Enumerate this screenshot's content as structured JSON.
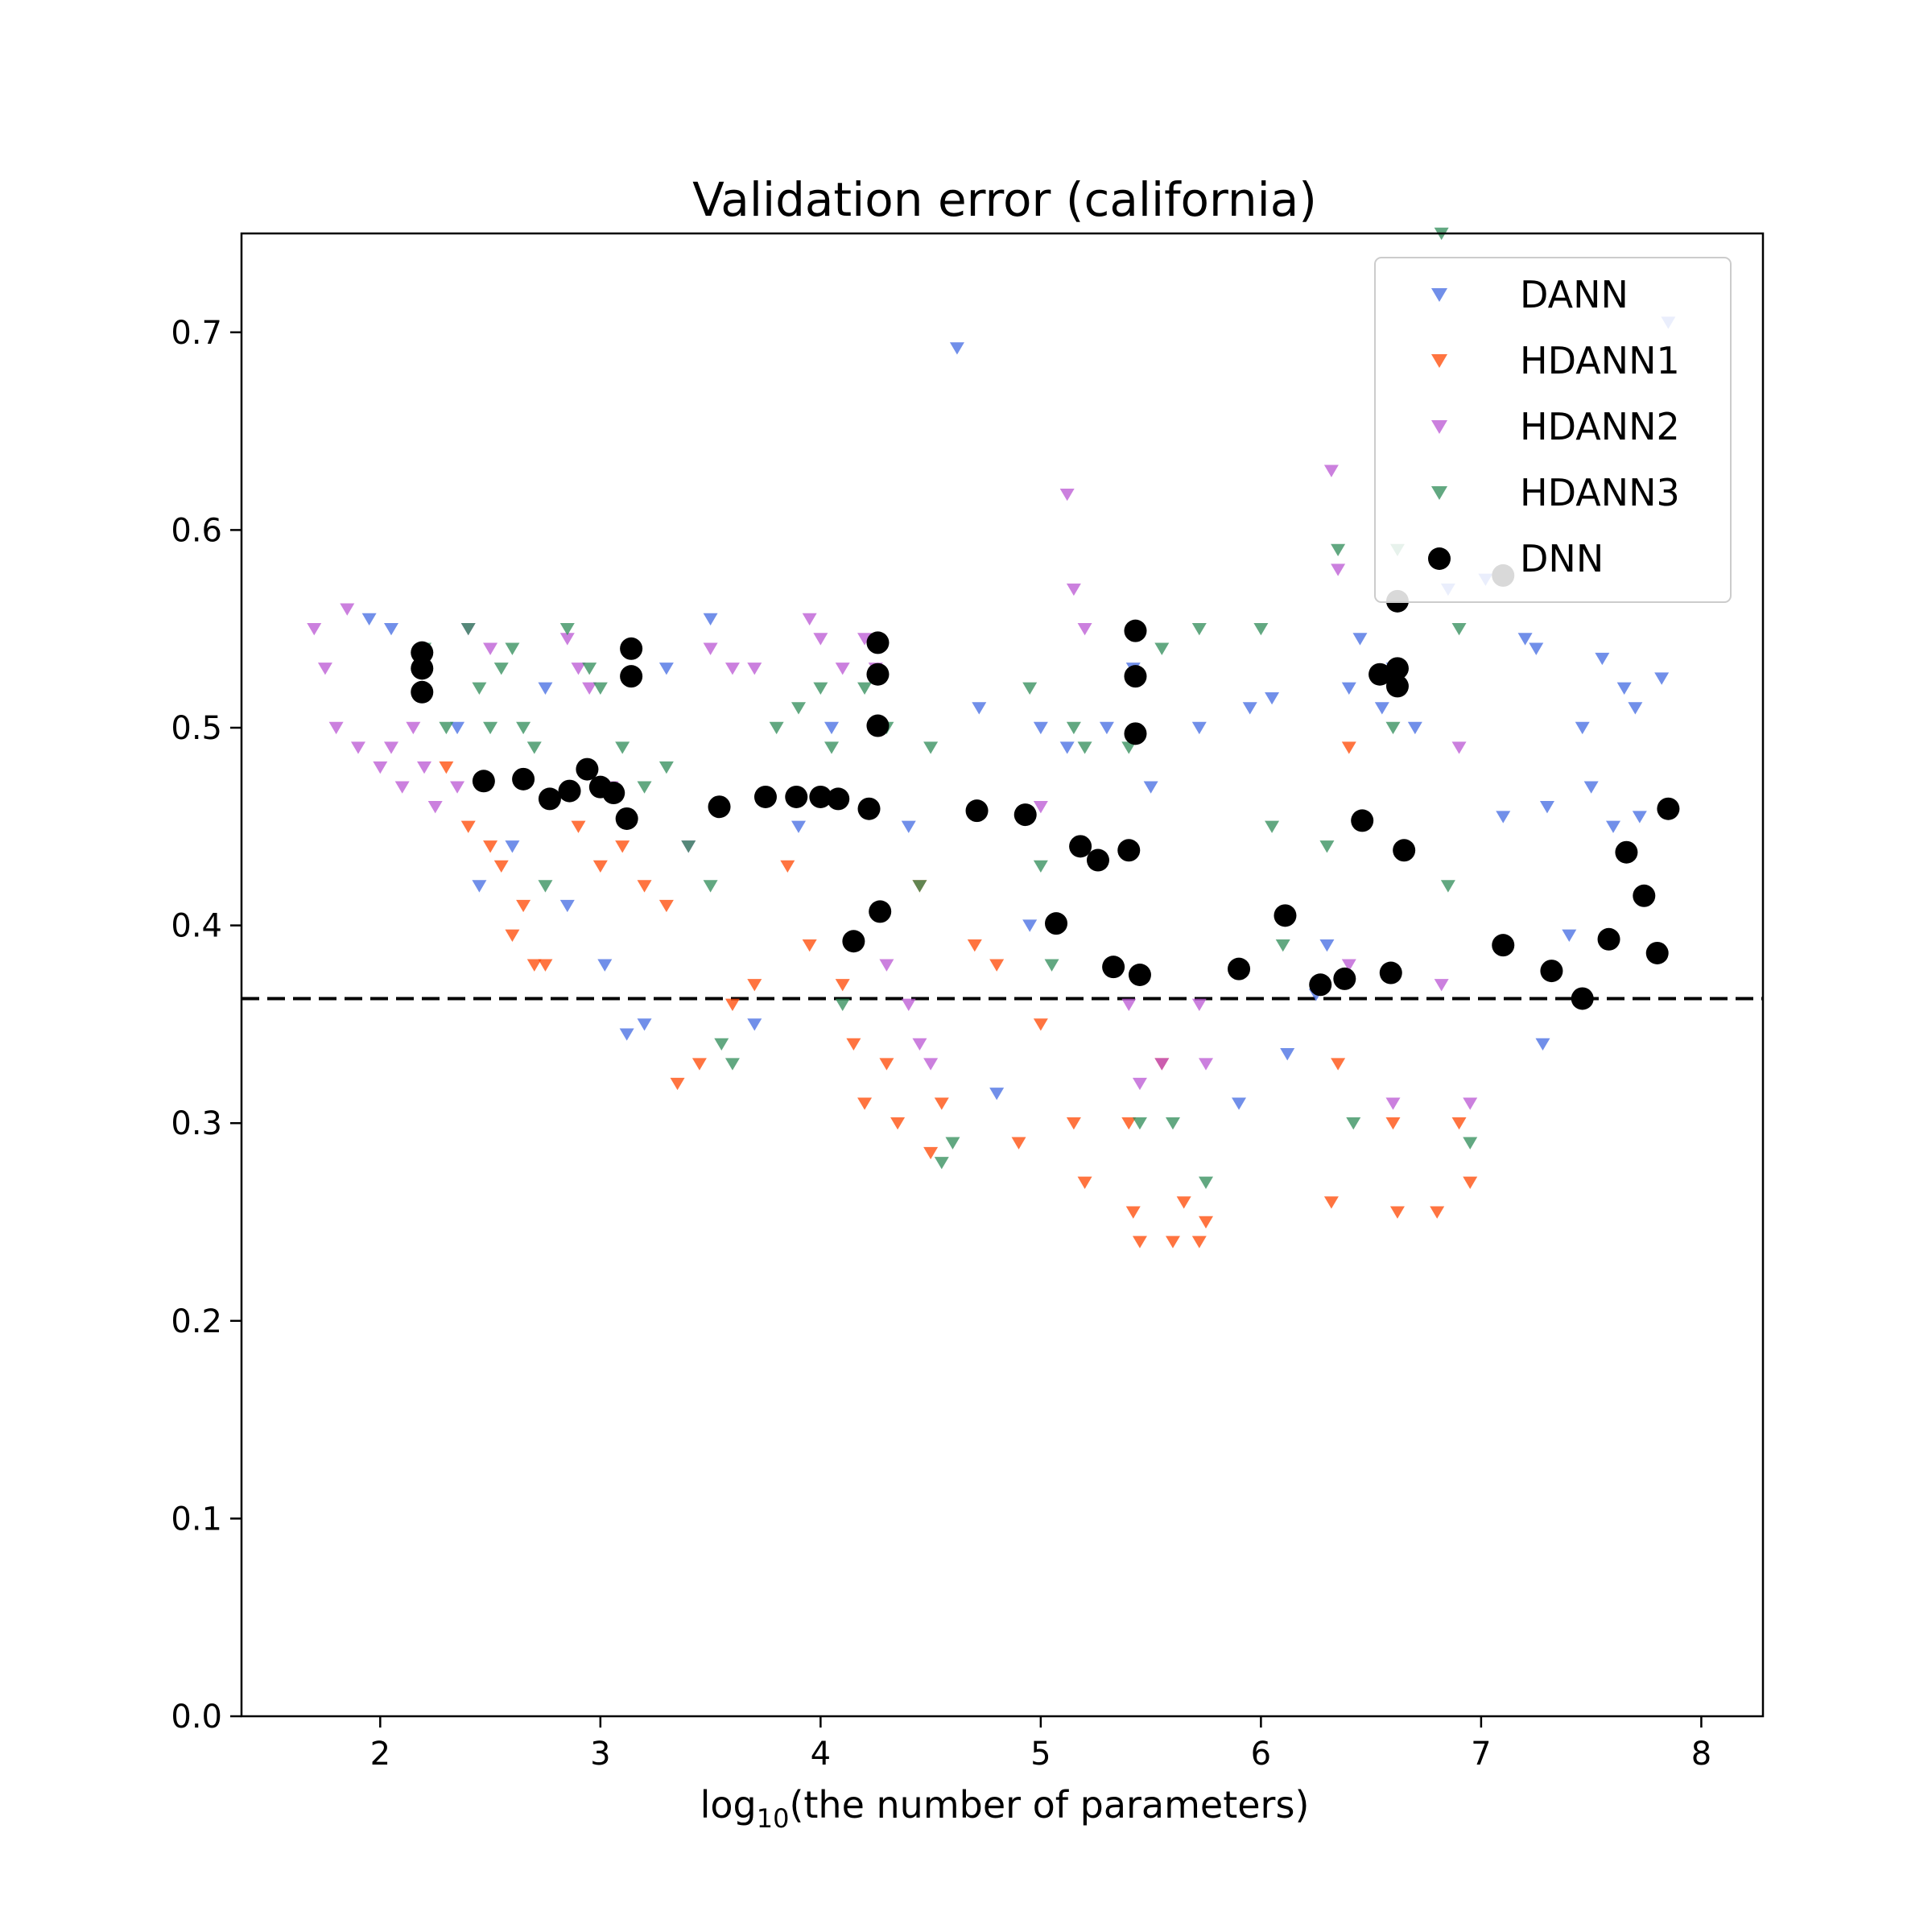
{
  "chart_data": {
    "type": "scatter",
    "title": "Validation error (california)",
    "xlabel_pre": "log",
    "xlabel_sub": "10",
    "xlabel_post": "(the number of parameters)",
    "ylabel": "",
    "xlim": [
      1.37,
      8.28
    ],
    "ylim": [
      0.0,
      0.75
    ],
    "xticks": [
      2,
      3,
      4,
      5,
      6,
      7,
      8
    ],
    "yticks": [
      0.0,
      0.1,
      0.2,
      0.3,
      0.4,
      0.5,
      0.6,
      0.7
    ],
    "grid": false,
    "legend_position": "upper-right",
    "reference_line": {
      "y": 0.363,
      "style": "dashed",
      "color": "#000000"
    },
    "series": [
      {
        "name": "DANN",
        "marker": "triangle-down",
        "color": "#4169E1",
        "points": [
          [
            1.95,
            0.555
          ],
          [
            2.05,
            0.55
          ],
          [
            2.35,
            0.5
          ],
          [
            2.45,
            0.42
          ],
          [
            2.6,
            0.44
          ],
          [
            2.75,
            0.52
          ],
          [
            2.85,
            0.41
          ],
          [
            3.02,
            0.38
          ],
          [
            3.12,
            0.345
          ],
          [
            3.2,
            0.35
          ],
          [
            3.3,
            0.53
          ],
          [
            3.5,
            0.555
          ],
          [
            3.7,
            0.35
          ],
          [
            3.9,
            0.45
          ],
          [
            4.05,
            0.5
          ],
          [
            4.4,
            0.45
          ],
          [
            4.62,
            0.692
          ],
          [
            4.72,
            0.51
          ],
          [
            4.8,
            0.315
          ],
          [
            4.95,
            0.4
          ],
          [
            5.0,
            0.5
          ],
          [
            5.12,
            0.49
          ],
          [
            5.3,
            0.5
          ],
          [
            5.42,
            0.53
          ],
          [
            5.5,
            0.47
          ],
          [
            5.72,
            0.5
          ],
          [
            5.9,
            0.31
          ],
          [
            5.95,
            0.51
          ],
          [
            6.05,
            0.515
          ],
          [
            6.12,
            0.335
          ],
          [
            6.25,
            0.365
          ],
          [
            6.3,
            0.39
          ],
          [
            6.4,
            0.52
          ],
          [
            6.45,
            0.545
          ],
          [
            6.55,
            0.51
          ],
          [
            6.6,
            0.53
          ],
          [
            6.7,
            0.5
          ],
          [
            6.85,
            0.57
          ],
          [
            7.02,
            0.575
          ],
          [
            7.1,
            0.455
          ],
          [
            7.2,
            0.545
          ],
          [
            7.25,
            0.54
          ],
          [
            7.28,
            0.34
          ],
          [
            7.3,
            0.46
          ],
          [
            7.4,
            0.395
          ],
          [
            7.46,
            0.5
          ],
          [
            7.5,
            0.47
          ],
          [
            7.55,
            0.535
          ],
          [
            7.6,
            0.45
          ],
          [
            7.65,
            0.52
          ],
          [
            7.7,
            0.51
          ],
          [
            7.72,
            0.455
          ],
          [
            7.82,
            0.525
          ],
          [
            7.85,
            0.705
          ]
        ]
      },
      {
        "name": "HDANN1",
        "marker": "triangle-down",
        "color": "#FF4500",
        "points": [
          [
            2.3,
            0.48
          ],
          [
            2.4,
            0.45
          ],
          [
            2.5,
            0.44
          ],
          [
            2.55,
            0.43
          ],
          [
            2.6,
            0.395
          ],
          [
            2.65,
            0.41
          ],
          [
            2.7,
            0.38
          ],
          [
            2.75,
            0.38
          ],
          [
            2.9,
            0.45
          ],
          [
            3.0,
            0.43
          ],
          [
            3.1,
            0.44
          ],
          [
            3.2,
            0.42
          ],
          [
            3.3,
            0.41
          ],
          [
            3.35,
            0.32
          ],
          [
            3.45,
            0.33
          ],
          [
            3.6,
            0.36
          ],
          [
            3.7,
            0.37
          ],
          [
            3.85,
            0.43
          ],
          [
            3.95,
            0.39
          ],
          [
            4.1,
            0.37
          ],
          [
            4.15,
            0.34
          ],
          [
            4.2,
            0.31
          ],
          [
            4.3,
            0.33
          ],
          [
            4.35,
            0.3
          ],
          [
            4.45,
            0.42
          ],
          [
            4.5,
            0.285
          ],
          [
            4.55,
            0.31
          ],
          [
            4.7,
            0.39
          ],
          [
            4.8,
            0.38
          ],
          [
            4.9,
            0.29
          ],
          [
            5.0,
            0.35
          ],
          [
            5.15,
            0.3
          ],
          [
            5.2,
            0.27
          ],
          [
            5.4,
            0.3
          ],
          [
            5.42,
            0.255
          ],
          [
            5.45,
            0.24
          ],
          [
            5.55,
            0.33
          ],
          [
            5.6,
            0.24
          ],
          [
            5.65,
            0.26
          ],
          [
            5.72,
            0.24
          ],
          [
            5.75,
            0.25
          ],
          [
            6.32,
            0.26
          ],
          [
            6.35,
            0.33
          ],
          [
            6.4,
            0.49
          ],
          [
            6.6,
            0.3
          ],
          [
            6.62,
            0.255
          ],
          [
            6.8,
            0.255
          ],
          [
            6.9,
            0.3
          ],
          [
            6.95,
            0.27
          ]
        ]
      },
      {
        "name": "HDANN2",
        "marker": "triangle-down",
        "color": "#BA55D3",
        "points": [
          [
            1.7,
            0.55
          ],
          [
            1.75,
            0.53
          ],
          [
            1.8,
            0.5
          ],
          [
            1.85,
            0.56
          ],
          [
            1.9,
            0.49
          ],
          [
            2.0,
            0.48
          ],
          [
            2.05,
            0.49
          ],
          [
            2.1,
            0.47
          ],
          [
            2.15,
            0.5
          ],
          [
            2.2,
            0.48
          ],
          [
            2.25,
            0.46
          ],
          [
            2.35,
            0.47
          ],
          [
            2.4,
            0.55
          ],
          [
            2.5,
            0.54
          ],
          [
            2.85,
            0.545
          ],
          [
            2.9,
            0.53
          ],
          [
            2.95,
            0.52
          ],
          [
            3.05,
            0.47
          ],
          [
            3.4,
            0.44
          ],
          [
            3.5,
            0.54
          ],
          [
            3.6,
            0.53
          ],
          [
            3.7,
            0.53
          ],
          [
            3.95,
            0.555
          ],
          [
            4.0,
            0.545
          ],
          [
            4.1,
            0.53
          ],
          [
            4.2,
            0.545
          ],
          [
            4.25,
            0.53
          ],
          [
            4.3,
            0.38
          ],
          [
            4.4,
            0.36
          ],
          [
            4.45,
            0.34
          ],
          [
            4.5,
            0.33
          ],
          [
            5.0,
            0.46
          ],
          [
            5.12,
            0.618
          ],
          [
            5.15,
            0.57
          ],
          [
            5.2,
            0.55
          ],
          [
            5.4,
            0.36
          ],
          [
            5.45,
            0.32
          ],
          [
            5.55,
            0.33
          ],
          [
            5.72,
            0.36
          ],
          [
            5.75,
            0.33
          ],
          [
            6.32,
            0.63
          ],
          [
            6.35,
            0.58
          ],
          [
            6.4,
            0.38
          ],
          [
            6.6,
            0.31
          ],
          [
            6.82,
            0.37
          ],
          [
            6.9,
            0.49
          ],
          [
            6.95,
            0.31
          ]
        ]
      },
      {
        "name": "HDANN3",
        "marker": "triangle-down",
        "color": "#2E8B57",
        "points": [
          [
            2.2,
            0.54
          ],
          [
            2.3,
            0.5
          ],
          [
            2.4,
            0.55
          ],
          [
            2.45,
            0.52
          ],
          [
            2.5,
            0.5
          ],
          [
            2.55,
            0.53
          ],
          [
            2.6,
            0.54
          ],
          [
            2.65,
            0.5
          ],
          [
            2.7,
            0.49
          ],
          [
            2.75,
            0.42
          ],
          [
            2.85,
            0.55
          ],
          [
            2.95,
            0.53
          ],
          [
            3.0,
            0.52
          ],
          [
            3.1,
            0.49
          ],
          [
            3.2,
            0.47
          ],
          [
            3.3,
            0.48
          ],
          [
            3.4,
            0.44
          ],
          [
            3.5,
            0.42
          ],
          [
            3.55,
            0.34
          ],
          [
            3.6,
            0.33
          ],
          [
            3.8,
            0.5
          ],
          [
            3.9,
            0.51
          ],
          [
            4.0,
            0.52
          ],
          [
            4.05,
            0.49
          ],
          [
            4.1,
            0.36
          ],
          [
            4.2,
            0.52
          ],
          [
            4.3,
            0.5
          ],
          [
            4.45,
            0.42
          ],
          [
            4.5,
            0.49
          ],
          [
            4.55,
            0.28
          ],
          [
            4.6,
            0.29
          ],
          [
            4.95,
            0.52
          ],
          [
            5.0,
            0.43
          ],
          [
            5.05,
            0.38
          ],
          [
            5.15,
            0.5
          ],
          [
            5.2,
            0.49
          ],
          [
            5.4,
            0.49
          ],
          [
            5.45,
            0.3
          ],
          [
            5.55,
            0.54
          ],
          [
            5.6,
            0.3
          ],
          [
            5.72,
            0.55
          ],
          [
            5.75,
            0.27
          ],
          [
            6.0,
            0.55
          ],
          [
            6.05,
            0.45
          ],
          [
            6.1,
            0.39
          ],
          [
            6.3,
            0.44
          ],
          [
            6.35,
            0.59
          ],
          [
            6.42,
            0.3
          ],
          [
            6.6,
            0.5
          ],
          [
            6.62,
            0.59
          ],
          [
            6.82,
            0.75
          ],
          [
            6.85,
            0.42
          ],
          [
            6.9,
            0.55
          ],
          [
            6.95,
            0.29
          ]
        ]
      },
      {
        "name": "DNN",
        "marker": "circle",
        "color": "#000000",
        "points": [
          [
            2.19,
            0.538
          ],
          [
            2.19,
            0.53
          ],
          [
            2.19,
            0.518
          ],
          [
            2.47,
            0.473
          ],
          [
            2.65,
            0.474
          ],
          [
            2.77,
            0.464
          ],
          [
            2.86,
            0.468
          ],
          [
            2.94,
            0.479
          ],
          [
            3.0,
            0.47
          ],
          [
            3.06,
            0.467
          ],
          [
            3.12,
            0.454
          ],
          [
            3.14,
            0.54
          ],
          [
            3.14,
            0.526
          ],
          [
            3.54,
            0.46
          ],
          [
            3.75,
            0.465
          ],
          [
            3.89,
            0.465
          ],
          [
            4.0,
            0.465
          ],
          [
            4.08,
            0.464
          ],
          [
            4.15,
            0.392
          ],
          [
            4.22,
            0.459
          ],
          [
            4.26,
            0.543
          ],
          [
            4.26,
            0.527
          ],
          [
            4.26,
            0.501
          ],
          [
            4.27,
            0.407
          ],
          [
            4.71,
            0.458
          ],
          [
            4.93,
            0.456
          ],
          [
            5.07,
            0.401
          ],
          [
            5.18,
            0.44
          ],
          [
            5.26,
            0.433
          ],
          [
            5.33,
            0.379
          ],
          [
            5.4,
            0.438
          ],
          [
            5.43,
            0.549
          ],
          [
            5.43,
            0.526
          ],
          [
            5.43,
            0.497
          ],
          [
            5.45,
            0.375
          ],
          [
            5.9,
            0.378
          ],
          [
            6.11,
            0.405
          ],
          [
            6.27,
            0.37
          ],
          [
            6.38,
            0.373
          ],
          [
            6.46,
            0.453
          ],
          [
            6.54,
            0.527
          ],
          [
            6.59,
            0.376
          ],
          [
            6.62,
            0.53
          ],
          [
            6.62,
            0.521
          ],
          [
            6.62,
            0.564
          ],
          [
            6.65,
            0.438
          ],
          [
            7.1,
            0.39
          ],
          [
            7.1,
            0.577
          ],
          [
            7.32,
            0.377
          ],
          [
            7.46,
            0.363
          ],
          [
            7.58,
            0.393
          ],
          [
            7.66,
            0.437
          ],
          [
            7.74,
            0.415
          ],
          [
            7.8,
            0.386
          ],
          [
            7.85,
            0.459
          ]
        ]
      }
    ]
  }
}
